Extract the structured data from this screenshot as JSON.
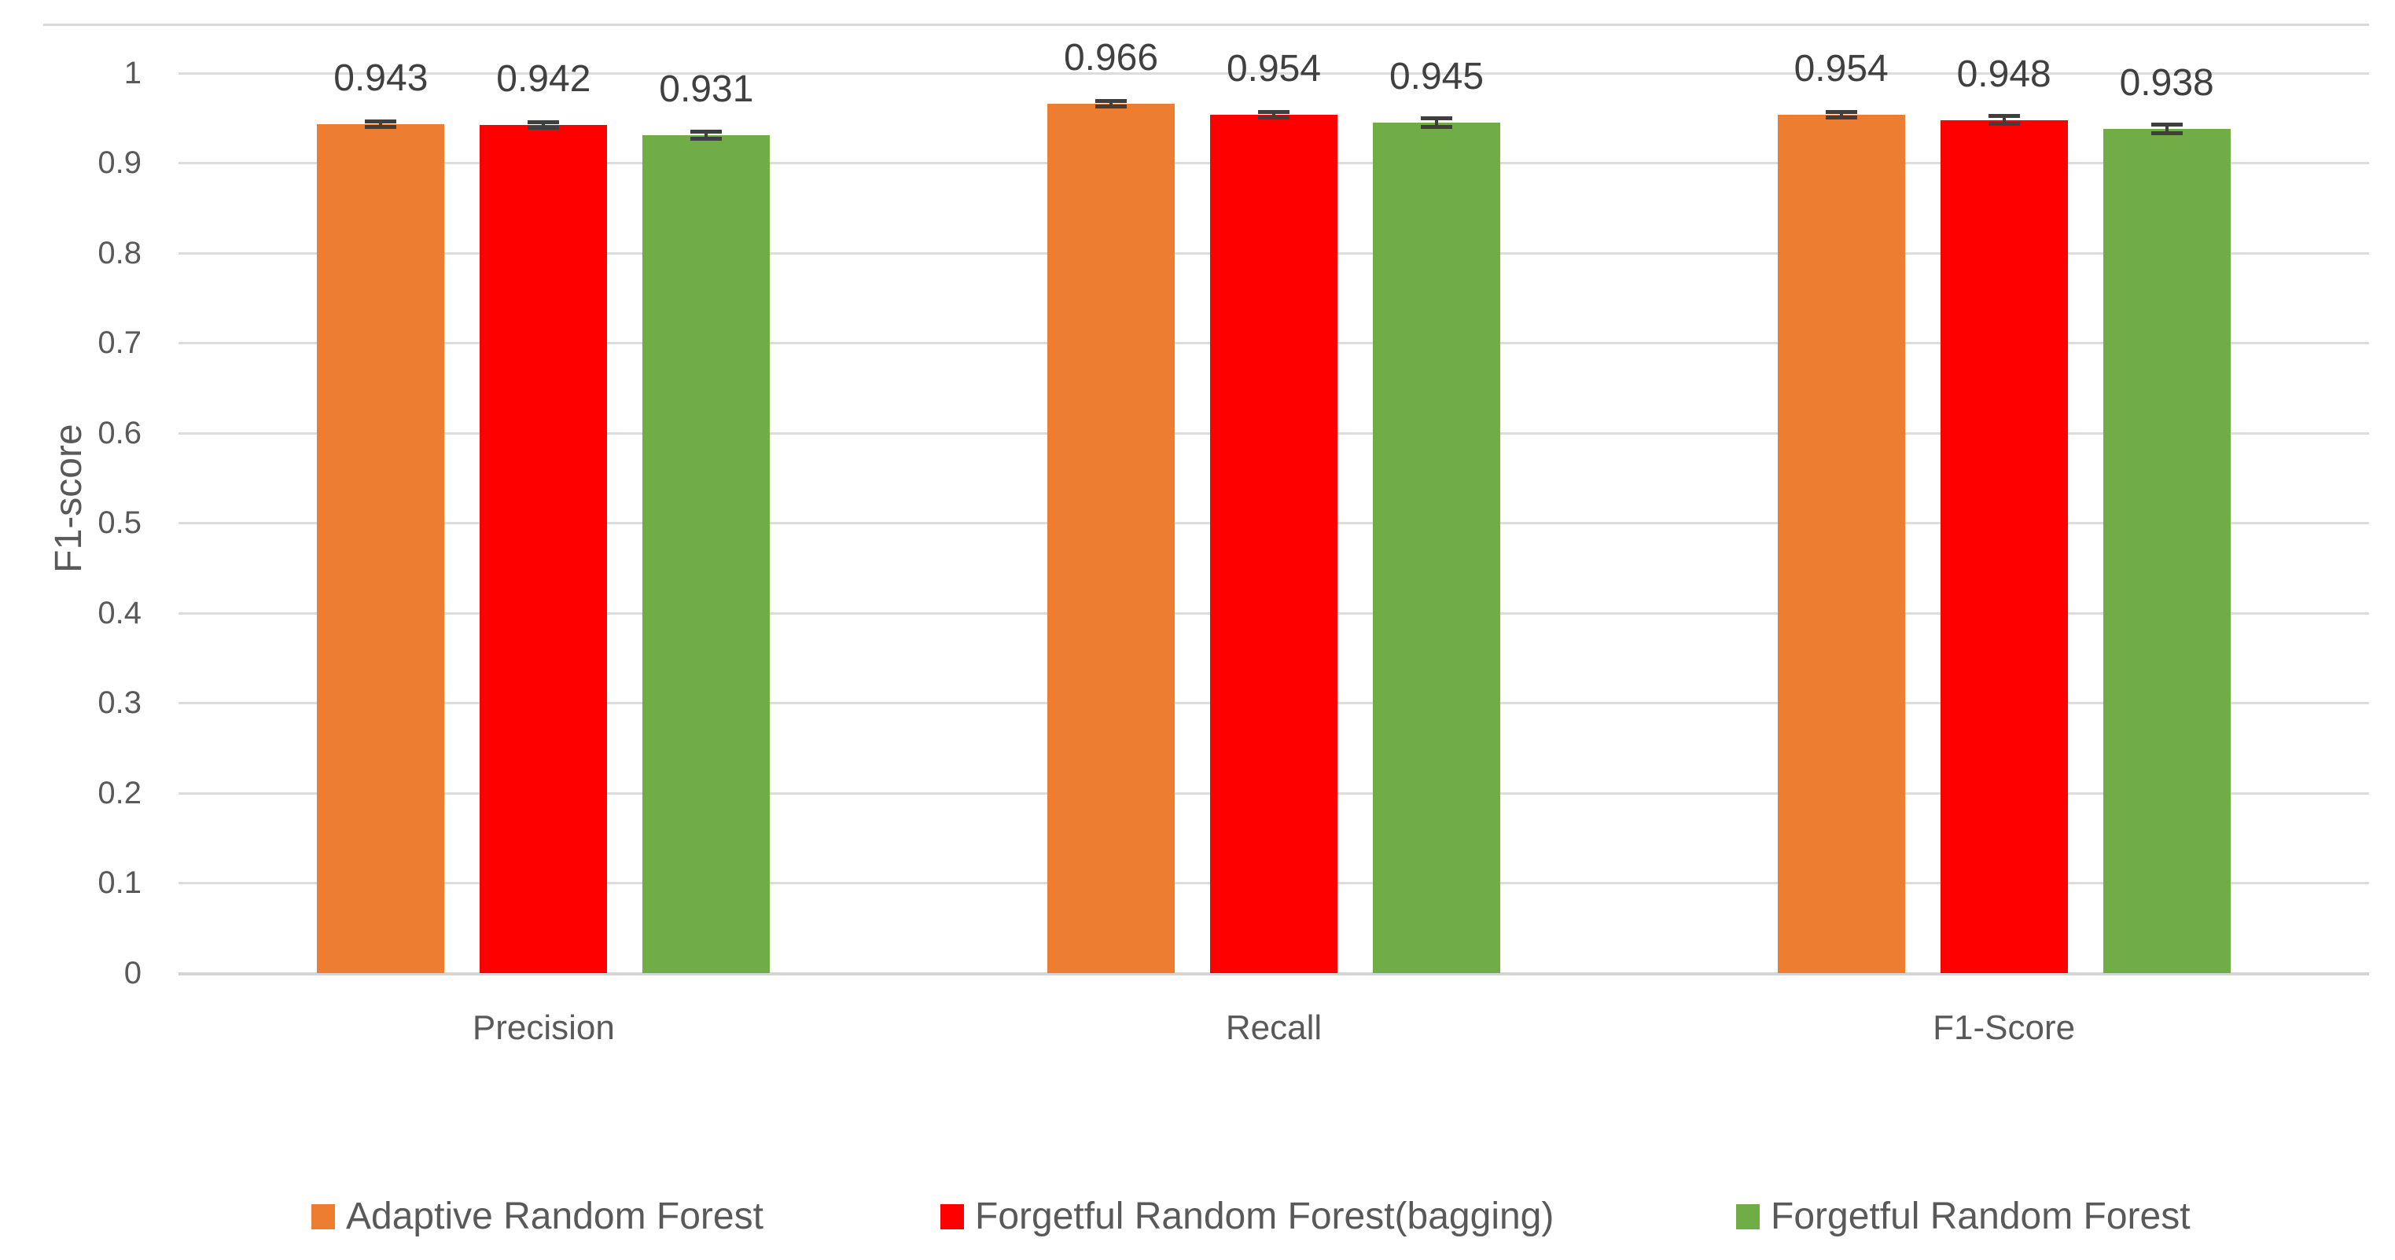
{
  "chart_data": {
    "type": "bar",
    "title": "",
    "categories": [
      "Precision",
      "Recall",
      "F1-Score"
    ],
    "series": [
      {
        "name": "Adaptive Random Forest",
        "color": "#ED7D31",
        "values": [
          0.943,
          0.966,
          0.954
        ],
        "labels": [
          "0.943",
          "0.966",
          "0.954"
        ],
        "errors": [
          0.003,
          0.003,
          0.003
        ]
      },
      {
        "name": "Forgetful Random Forest(bagging)",
        "color": "#FF0000",
        "values": [
          0.942,
          0.954,
          0.948
        ],
        "labels": [
          "0.942",
          "0.954",
          "0.948"
        ],
        "errors": [
          0.003,
          0.003,
          0.004
        ]
      },
      {
        "name": "Forgetful Random Forest",
        "color": "#70AD47",
        "values": [
          0.931,
          0.945,
          0.938
        ],
        "labels": [
          "0.931",
          "0.945",
          "0.938"
        ],
        "errors": [
          0.004,
          0.005,
          0.005
        ]
      }
    ],
    "xlabel": "",
    "ylabel": "F1-score",
    "ylim": [
      0,
      1.05
    ],
    "yticks": [
      "0",
      "0.1",
      "0.2",
      "0.3",
      "0.4",
      "0.5",
      "0.6",
      "0.7",
      "0.8",
      "0.9",
      "1"
    ],
    "grid": true,
    "legend_position": "bottom",
    "colors": {
      "gridline": "#DCDCDC",
      "axis_text": "#595959",
      "data_label_text": "#404040",
      "error_bar": "#3F3F3F",
      "background": "#FFFFFF"
    }
  }
}
